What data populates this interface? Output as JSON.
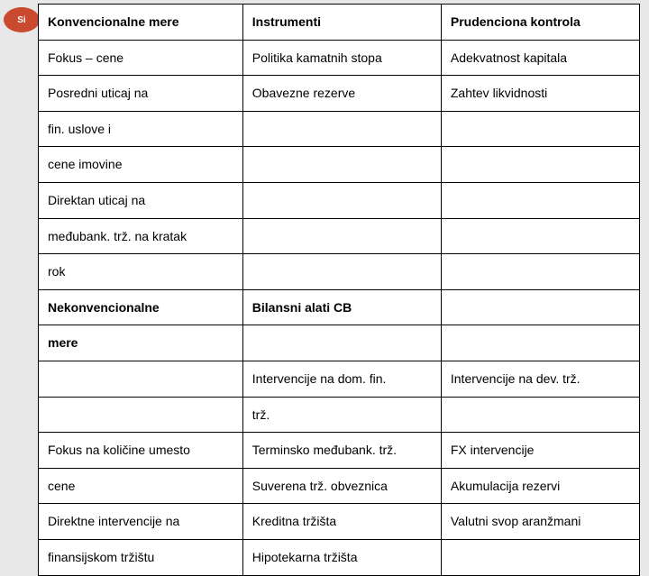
{
  "logo_text": "Si",
  "rows": [
    {
      "bold": true,
      "c1": "Konvencionalne mere",
      "c2": "Instrumenti",
      "c3": "Prudenciona kontrola"
    },
    {
      "bold": false,
      "c1": "Fokus – cene",
      "c2": "Politika kamatnih stopa",
      "c3": "Adekvatnost kapitala"
    },
    {
      "bold": false,
      "c1": "Posredni uticaj na",
      "c2": "Obavezne rezerve",
      "c3": "Zahtev likvidnosti"
    },
    {
      "bold": false,
      "c1": "fin. uslove i",
      "c2": "",
      "c3": ""
    },
    {
      "bold": false,
      "c1": "cene imovine",
      "c2": "",
      "c3": ""
    },
    {
      "bold": false,
      "c1": "Direktan uticaj na",
      "c2": "",
      "c3": ""
    },
    {
      "bold": false,
      "c1": "međubank. trž. na kratak",
      "c2": "",
      "c3": ""
    },
    {
      "bold": false,
      "c1": "rok",
      "c2": "",
      "c3": ""
    },
    {
      "bold": true,
      "c1": "Nekonvencionalne",
      "c2": "Bilansni alati CB",
      "c3": ""
    },
    {
      "bold": true,
      "c1": "mere",
      "c2": "",
      "c3": ""
    },
    {
      "bold": false,
      "c1": "",
      "c2": "Intervencije na dom. fin.",
      "c3": "Intervencije na dev. trž."
    },
    {
      "bold": false,
      "c1": "",
      "c2": "trž.",
      "c3": ""
    },
    {
      "bold": false,
      "c1": "Fokus na količine umesto",
      "c2": "Terminsko međubank. trž.",
      "c3": "FX intervencije"
    },
    {
      "bold": false,
      "c1": "cene",
      "c2": "Suverena trž. obveznica",
      "c3": "Akumulacija rezervi"
    },
    {
      "bold": false,
      "c1": "Direktne intervencije na",
      "c2": "Kreditna tržišta",
      "c3": "Valutni svop aranžmani"
    },
    {
      "bold": false,
      "c1": "finansijskom tržištu",
      "c2": "Hipotekarna tržišta",
      "c3": ""
    }
  ]
}
